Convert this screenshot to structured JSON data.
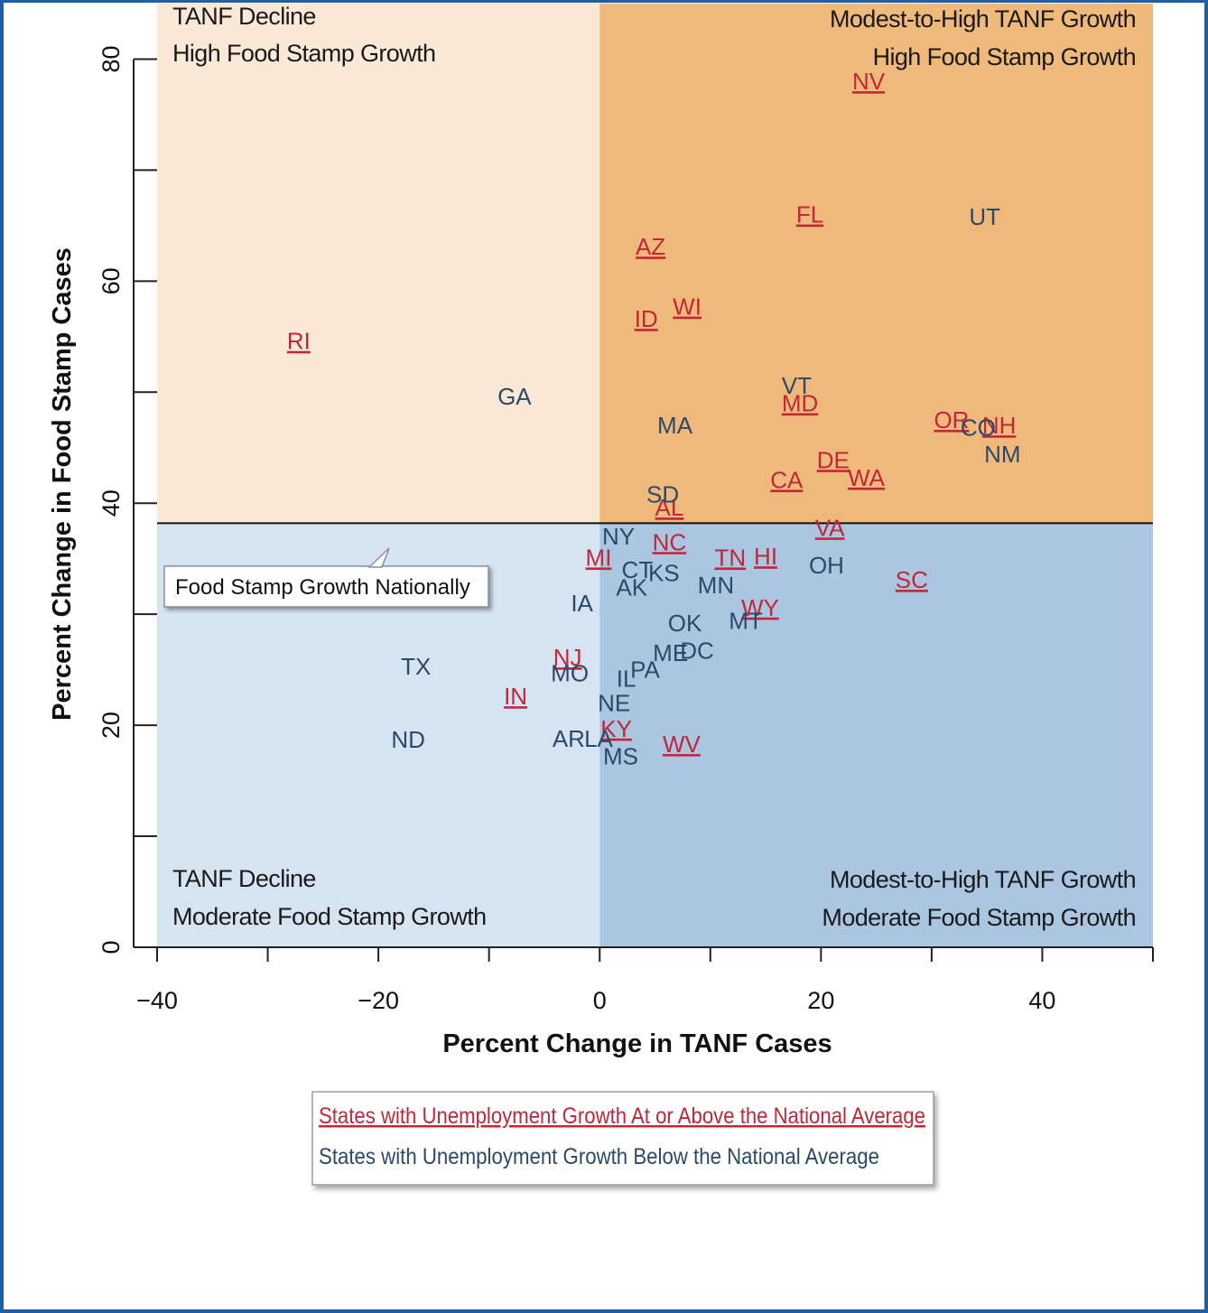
{
  "colors": {
    "frame_border": "#1f5fa8",
    "quad_top_left": "#fbe9d8",
    "quad_top_right": "#f0b97c",
    "quad_bottom_left": "#d6e3f1",
    "quad_bottom_right": "#aac6e1",
    "above_average": "#c0283a",
    "below_average": "#2b4a6b",
    "national_line": "#111111"
  },
  "chart_data": {
    "type": "scatter",
    "xlabel": "Percent Change in TANF Cases",
    "ylabel": "Percent Change in Food Stamp Cases",
    "xlim": [
      -40,
      50
    ],
    "ylim": [
      0,
      85
    ],
    "x_ticks": [
      -40,
      -20,
      0,
      20,
      40
    ],
    "x_tick_labels": [
      "−40",
      "−20",
      "0",
      "20",
      "40"
    ],
    "y_ticks": [
      0,
      20,
      40,
      60,
      80
    ],
    "y_tick_labels": [
      "0",
      "20",
      "40",
      "60",
      "80"
    ],
    "grid": false,
    "national_food_stamp_growth": 38.2,
    "national_tanf_growth": 0,
    "callout": "Food Stamp Growth Nationally",
    "quadrants": {
      "top_left": [
        "TANF Decline",
        "High Food Stamp Growth"
      ],
      "top_right": [
        "Modest-to-High TANF Growth",
        "High Food Stamp Growth"
      ],
      "bottom_left": [
        "TANF Decline",
        "Moderate Food Stamp Growth"
      ],
      "bottom_right": [
        "Modest-to-High TANF Growth",
        "Moderate Food Stamp Growth"
      ]
    },
    "legend": {
      "placement": "bottom-center",
      "above": "States with Unemployment Growth At or Above the National Average",
      "below": "States with Unemployment Growth Below the National Average"
    },
    "series": [
      {
        "name": "States with Unemployment Growth At or Above the National Average",
        "points": [
          {
            "label": "NV",
            "x": 24.3,
            "y": 78.0
          },
          {
            "label": "FL",
            "x": 19.0,
            "y": 66.0
          },
          {
            "label": "AZ",
            "x": 4.6,
            "y": 63.1
          },
          {
            "label": "WI",
            "x": 7.9,
            "y": 57.7
          },
          {
            "label": "ID",
            "x": 4.2,
            "y": 56.6
          },
          {
            "label": "RI",
            "x": -27.2,
            "y": 54.6
          },
          {
            "label": "MD",
            "x": 18.1,
            "y": 49.0
          },
          {
            "label": "OR",
            "x": 31.8,
            "y": 47.5
          },
          {
            "label": "NH",
            "x": 36.1,
            "y": 47.0
          },
          {
            "label": "DE",
            "x": 21.1,
            "y": 43.9
          },
          {
            "label": "WA",
            "x": 24.1,
            "y": 42.3
          },
          {
            "label": "CA",
            "x": 16.9,
            "y": 42.1
          },
          {
            "label": "AL",
            "x": 6.3,
            "y": 39.6
          },
          {
            "label": "VA",
            "x": 20.8,
            "y": 37.8
          },
          {
            "label": "NC",
            "x": 6.3,
            "y": 36.5
          },
          {
            "label": "MI",
            "x": -0.1,
            "y": 35.1
          },
          {
            "label": "TN",
            "x": 11.8,
            "y": 35.1
          },
          {
            "label": "HI",
            "x": 15.0,
            "y": 35.2
          },
          {
            "label": "SC",
            "x": 28.2,
            "y": 33.1
          },
          {
            "label": "WY",
            "x": 14.5,
            "y": 30.6
          },
          {
            "label": "NJ",
            "x": -2.9,
            "y": 26.1
          },
          {
            "label": "IN",
            "x": -7.6,
            "y": 22.6
          },
          {
            "label": "KY",
            "x": 1.5,
            "y": 19.7
          },
          {
            "label": "WV",
            "x": 7.4,
            "y": 18.3
          }
        ]
      },
      {
        "name": "States with Unemployment Growth Below the National Average",
        "points": [
          {
            "label": "UT",
            "x": 34.8,
            "y": 65.8
          },
          {
            "label": "VT",
            "x": 17.8,
            "y": 50.6
          },
          {
            "label": "GA",
            "x": -7.7,
            "y": 49.6
          },
          {
            "label": "MA",
            "x": 6.8,
            "y": 47.0
          },
          {
            "label": "CO",
            "x": 34.2,
            "y": 46.8
          },
          {
            "label": "NM",
            "x": 36.4,
            "y": 44.4
          },
          {
            "label": "SD",
            "x": 5.7,
            "y": 40.8
          },
          {
            "label": "NY",
            "x": 1.7,
            "y": 37.0
          },
          {
            "label": "CT",
            "x": 3.4,
            "y": 34.0
          },
          {
            "label": "KS",
            "x": 5.8,
            "y": 33.7
          },
          {
            "label": "OH",
            "x": 20.5,
            "y": 34.4
          },
          {
            "label": "AK",
            "x": 2.9,
            "y": 32.4
          },
          {
            "label": "MN",
            "x": 10.5,
            "y": 32.6
          },
          {
            "label": "IA",
            "x": -1.6,
            "y": 31.0
          },
          {
            "label": "OK",
            "x": 7.7,
            "y": 29.2
          },
          {
            "label": "MT",
            "x": 13.2,
            "y": 29.4
          },
          {
            "label": "ME",
            "x": 6.4,
            "y": 26.5
          },
          {
            "label": "DC",
            "x": 8.8,
            "y": 26.7
          },
          {
            "label": "TX",
            "x": -16.6,
            "y": 25.3
          },
          {
            "label": "MO",
            "x": -2.7,
            "y": 24.7
          },
          {
            "label": "PA",
            "x": 4.1,
            "y": 25.0
          },
          {
            "label": "IL",
            "x": 2.4,
            "y": 24.2
          },
          {
            "label": "NE",
            "x": 1.3,
            "y": 22.0
          },
          {
            "label": "ND",
            "x": -17.3,
            "y": 18.7
          },
          {
            "label": "AR",
            "x": -2.8,
            "y": 18.8
          },
          {
            "label": "LA",
            "x": -0.1,
            "y": 18.8
          },
          {
            "label": "MS",
            "x": 1.9,
            "y": 17.2
          }
        ]
      }
    ]
  }
}
